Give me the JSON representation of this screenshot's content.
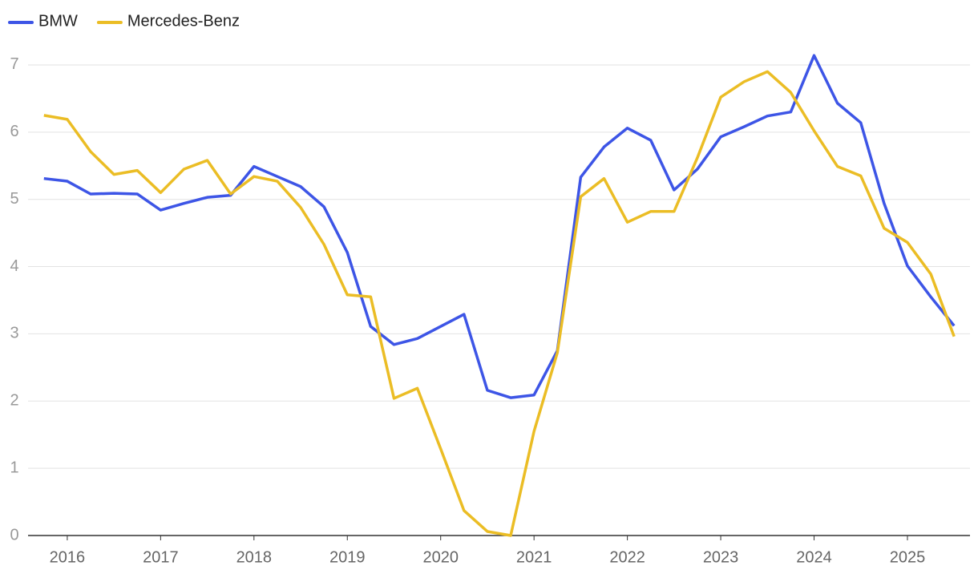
{
  "chart_data": {
    "type": "line",
    "x": [
      2015.75,
      2016,
      2016.25,
      2016.5,
      2016.75,
      2017,
      2017.25,
      2017.5,
      2017.75,
      2018,
      2018.25,
      2018.5,
      2018.75,
      2019,
      2019.25,
      2019.5,
      2019.75,
      2020,
      2020.25,
      2020.5,
      2020.75,
      2021,
      2021.25,
      2021.5,
      2021.75,
      2022,
      2022.25,
      2022.5,
      2022.75,
      2023,
      2023.25,
      2023.5,
      2023.75,
      2024,
      2024.25,
      2024.5,
      2024.75,
      2025,
      2025.25,
      2025.5
    ],
    "series": [
      {
        "name": "BMW",
        "color": "#3d55e6",
        "values": [
          5.31,
          5.27,
          5.08,
          5.09,
          5.08,
          4.84,
          4.94,
          5.03,
          5.06,
          5.49,
          5.34,
          5.19,
          4.89,
          4.21,
          3.11,
          2.84,
          2.93,
          3.11,
          3.29,
          2.16,
          2.05,
          2.09,
          2.75,
          5.33,
          5.78,
          6.06,
          5.88,
          5.14,
          5.45,
          5.93,
          6.08,
          6.24,
          6.3,
          7.14,
          6.43,
          6.14,
          4.94,
          4.01,
          3.55,
          3.12
        ]
      },
      {
        "name": "Mercedes-Benz",
        "color": "#ebbd25",
        "values": [
          6.25,
          6.19,
          5.71,
          5.37,
          5.43,
          5.1,
          5.45,
          5.58,
          5.08,
          5.34,
          5.27,
          4.88,
          4.33,
          3.58,
          3.55,
          2.04,
          2.19,
          1.29,
          0.37,
          0.06,
          0,
          1.55,
          2.72,
          5.04,
          5.31,
          4.66,
          4.82,
          4.82,
          5.62,
          6.52,
          6.75,
          6.9,
          6.59,
          6.02,
          5.49,
          5.35,
          4.57,
          4.36,
          3.89,
          2.96
        ]
      }
    ],
    "xlim": [
      2015.58,
      2025.67
    ],
    "xticks": [
      2016,
      2017,
      2018,
      2019,
      2020,
      2021,
      2022,
      2023,
      2024,
      2025
    ],
    "ylim": [
      0,
      7.25
    ],
    "yticks": [
      0,
      1,
      2,
      3,
      4,
      5,
      6,
      7
    ],
    "grid": true
  }
}
